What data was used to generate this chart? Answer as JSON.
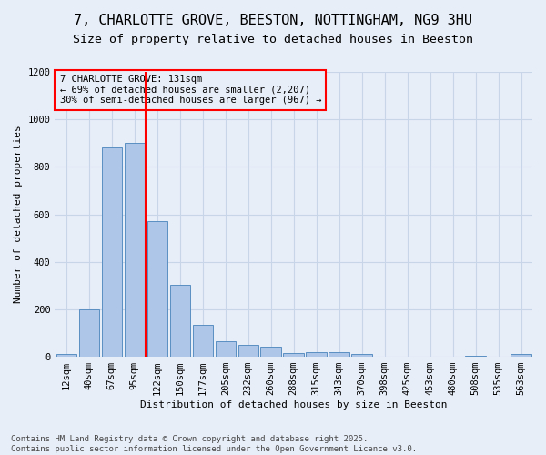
{
  "title": "7, CHARLOTTE GROVE, BEESTON, NOTTINGHAM, NG9 3HU",
  "subtitle": "Size of property relative to detached houses in Beeston",
  "xlabel": "Distribution of detached houses by size in Beeston",
  "ylabel": "Number of detached properties",
  "footer": "Contains HM Land Registry data © Crown copyright and database right 2025.\nContains public sector information licensed under the Open Government Licence v3.0.",
  "bar_labels": [
    "12sqm",
    "40sqm",
    "67sqm",
    "95sqm",
    "122sqm",
    "150sqm",
    "177sqm",
    "205sqm",
    "232sqm",
    "260sqm",
    "288sqm",
    "315sqm",
    "343sqm",
    "370sqm",
    "398sqm",
    "425sqm",
    "453sqm",
    "480sqm",
    "508sqm",
    "535sqm",
    "563sqm"
  ],
  "bar_values": [
    10,
    200,
    880,
    900,
    570,
    305,
    135,
    65,
    50,
    42,
    15,
    18,
    18,
    10,
    2,
    0,
    0,
    0,
    5,
    0,
    10
  ],
  "bar_color": "#aec6e8",
  "bar_edge_color": "#5a8fc2",
  "background_color": "#e8eef8",
  "grid_color": "#c8d4e8",
  "vline_x": 3.5,
  "vline_color": "red",
  "annotation_text": "7 CHARLOTTE GROVE: 131sqm\n← 69% of detached houses are smaller (2,207)\n30% of semi-detached houses are larger (967) →",
  "annotation_box_color": "red",
  "annotation_text_color": "black",
  "ylim": [
    0,
    1200
  ],
  "yticks": [
    0,
    200,
    400,
    600,
    800,
    1000,
    1200
  ],
  "title_fontsize": 11,
  "subtitle_fontsize": 9.5,
  "annotation_fontsize": 7.5,
  "footer_fontsize": 6.5,
  "axis_label_fontsize": 8,
  "tick_fontsize": 7.5
}
